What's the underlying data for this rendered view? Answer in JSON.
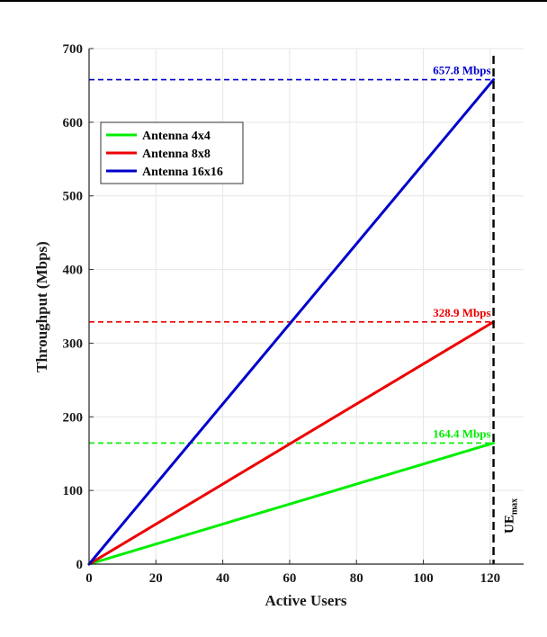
{
  "chart_data": {
    "type": "line",
    "xlabel": "Active Users",
    "ylabel": "Throughput (Mbps)",
    "xlim": [
      0,
      130
    ],
    "ylim": [
      0,
      700
    ],
    "xticks": [
      "0",
      "20",
      "40",
      "60",
      "80",
      "100",
      "120"
    ],
    "yticks": [
      "0",
      "100",
      "200",
      "300",
      "400",
      "500",
      "600",
      "700"
    ],
    "grid": true,
    "legend_position": "top-left",
    "series": [
      {
        "name": "Antenna 4x4",
        "color": "#00ee00",
        "x": [
          0,
          121
        ],
        "y": [
          0,
          164.4
        ]
      },
      {
        "name": "Antenna 8x8",
        "color": "#ee0000",
        "x": [
          0,
          121
        ],
        "y": [
          0,
          328.9
        ]
      },
      {
        "name": "Antenna 16x16",
        "color": "#0000cc",
        "x": [
          0,
          121
        ],
        "y": [
          0,
          657.8
        ]
      }
    ],
    "reference_lines": [
      {
        "label": "164.4 Mbps",
        "value": 164.4,
        "color": "#00ee00"
      },
      {
        "label": "328.9 Mbps",
        "value": 328.9,
        "color": "#ee0000"
      },
      {
        "label": "657.8 Mbps",
        "value": 657.8,
        "color": "#0000cc"
      }
    ],
    "vertical_marker": {
      "x": 121,
      "label_main": "UE",
      "label_sub": "max",
      "color": "#000000"
    }
  }
}
